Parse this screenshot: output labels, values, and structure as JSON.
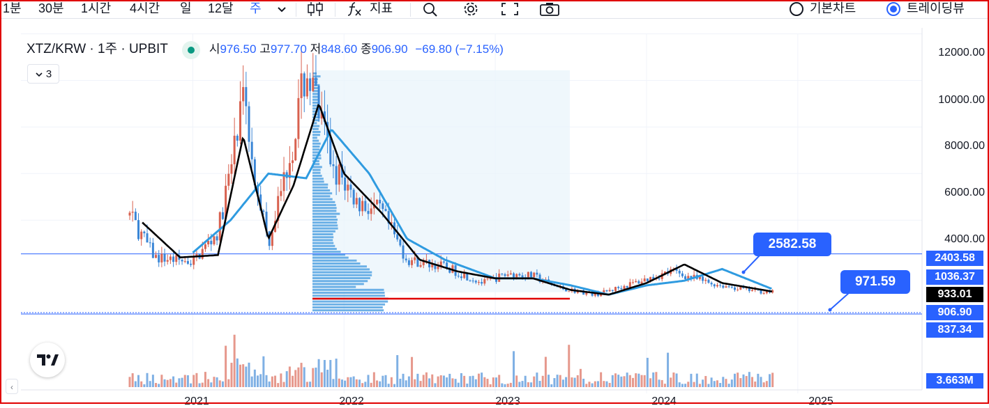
{
  "toolbar": {
    "intervals": [
      {
        "label": "1분",
        "active": false
      },
      {
        "label": "30분",
        "active": false
      },
      {
        "label": "1시간",
        "active": false
      },
      {
        "label": "4시간",
        "active": false
      },
      {
        "label": "일",
        "active": false
      },
      {
        "label": "12달",
        "active": false
      },
      {
        "label": "주",
        "active": true
      }
    ],
    "indicators_label": "지표",
    "view_modes": [
      {
        "label": "기본차트",
        "selected": false
      },
      {
        "label": "트레이딩뷰",
        "selected": true
      }
    ],
    "icons": [
      "chevron-down-icon",
      "candlestick-icon",
      "function-icon",
      "zoom-icon",
      "gear-icon",
      "fullscreen-icon",
      "camera-icon"
    ]
  },
  "legend": {
    "symbol": "XTZ/KRW · 1주 · UPBIT",
    "open_label": "시",
    "open": "976.50",
    "high_label": "고",
    "high": "977.70",
    "low_label": "저",
    "low": "848.60",
    "close_label": "종",
    "close": "906.90",
    "change": "−69.80 (−7.15%)",
    "collapsed_count": "3"
  },
  "price_axis": {
    "ticks": [
      "12000.00",
      "10000.00",
      "8000.00",
      "6000.00",
      "4000.00"
    ],
    "tags": [
      {
        "value": "2403.58",
        "color": "#2962ff"
      },
      {
        "value": "1036.37",
        "color": "#2962ff"
      },
      {
        "value": "933.01",
        "color": "#000000"
      },
      {
        "value": "906.90",
        "color": "#2962ff"
      },
      {
        "value": "837.34",
        "color": "#2962ff"
      }
    ],
    "volume_tag": "3.663M"
  },
  "callouts": {
    "upper": "2582.58",
    "lower": "971.59"
  },
  "time_axis": [
    "2021",
    "2022",
    "2023",
    "2024",
    "2025"
  ],
  "colors": {
    "up": "#d8614f",
    "down": "#3a86d6",
    "accent": "#2962ff",
    "ma_short": "#000000",
    "ma_long": "#2f9be0",
    "poc_line": "#e00000"
  },
  "chart_data": {
    "type": "candlestick",
    "price_range": [
      0,
      12500
    ],
    "x_range": [
      "2020-08",
      "2025-03"
    ],
    "series": [
      {
        "name": "price",
        "x": [
          "2020-08",
          "2020-10",
          "2021-01",
          "2021-03",
          "2021-05",
          "2021-07",
          "2021-09",
          "2021-10",
          "2021-12",
          "2022-02",
          "2022-04",
          "2022-06",
          "2022-09",
          "2022-12",
          "2023-02",
          "2023-04",
          "2023-06",
          "2023-09",
          "2023-12",
          "2024-03",
          "2024-06",
          "2024-09",
          "2024-11"
        ],
        "y": [
          4200,
          2400,
          2200,
          3500,
          8900,
          3000,
          7500,
          10500,
          6500,
          4800,
          4300,
          2300,
          2000,
          1300,
          1700,
          1600,
          1100,
          800,
          1300,
          1800,
          1300,
          1000,
          906.9
        ]
      },
      {
        "x": [
          "2020-09",
          "2020-12",
          "2021-03",
          "2021-05",
          "2021-07",
          "2021-09",
          "2021-11",
          "2022-01",
          "2022-04",
          "2022-07",
          "2022-10",
          "2023-01",
          "2023-04",
          "2023-07",
          "2023-10",
          "2024-01",
          "2024-04",
          "2024-07",
          "2024-11"
        ],
        "y": [
          3900,
          2400,
          2500,
          7600,
          3200,
          5500,
          9000,
          6000,
          4300,
          2300,
          1800,
          1500,
          1500,
          1000,
          800,
          1300,
          2100,
          1300,
          933.01
        ]
      },
      {
        "x": [
          "2021-01",
          "2021-04",
          "2021-07",
          "2021-10",
          "2021-12",
          "2022-03",
          "2022-06",
          "2022-09",
          "2023-01",
          "2023-04",
          "2023-07",
          "2023-10",
          "2024-01",
          "2024-04",
          "2024-07",
          "2024-11"
        ],
        "y": [
          2600,
          4000,
          6000,
          5800,
          7900,
          6000,
          3200,
          2300,
          1500,
          1500,
          1200,
          800,
          1200,
          1400,
          1900,
          1036.37
        ]
      }
    ],
    "levels": [
      2403.58,
      906.9,
      837.34
    ]
  }
}
